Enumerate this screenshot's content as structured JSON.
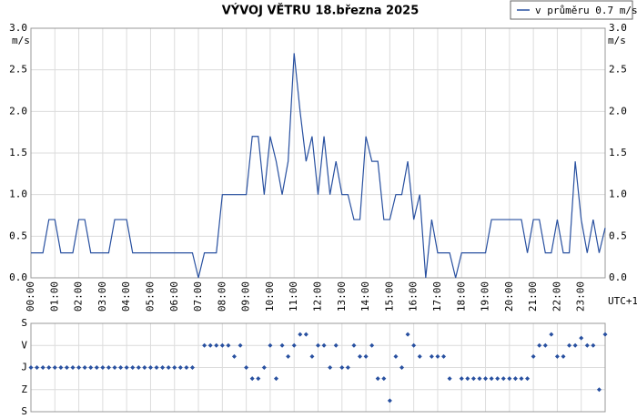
{
  "chart_data": [
    {
      "type": "line",
      "title": "VÝVOJ VĚTRU  18.března 2025",
      "legend": "v průměru 0.7 m/s",
      "y_unit": "m/s",
      "x_unit": "UTC+1",
      "grid": true,
      "legend_position": "top-right",
      "xlim": [
        0,
        1440
      ],
      "xticks": [
        {
          "value": 0,
          "label": "00:00"
        },
        {
          "value": 60,
          "label": "01:00"
        },
        {
          "value": 120,
          "label": "02:00"
        },
        {
          "value": 180,
          "label": "03:00"
        },
        {
          "value": 240,
          "label": "04:00"
        },
        {
          "value": 300,
          "label": "05:00"
        },
        {
          "value": 360,
          "label": "06:00"
        },
        {
          "value": 420,
          "label": "07:00"
        },
        {
          "value": 480,
          "label": "08:00"
        },
        {
          "value": 540,
          "label": "09:00"
        },
        {
          "value": 600,
          "label": "10:00"
        },
        {
          "value": 660,
          "label": "11:00"
        },
        {
          "value": 720,
          "label": "12:00"
        },
        {
          "value": 780,
          "label": "13:00"
        },
        {
          "value": 840,
          "label": "14:00"
        },
        {
          "value": 900,
          "label": "15:00"
        },
        {
          "value": 960,
          "label": "16:00"
        },
        {
          "value": 1020,
          "label": "17:00"
        },
        {
          "value": 1080,
          "label": "18:00"
        },
        {
          "value": 1140,
          "label": "19:00"
        },
        {
          "value": 1200,
          "label": "20:00"
        },
        {
          "value": 1260,
          "label": "21:00"
        },
        {
          "value": 1320,
          "label": "22:00"
        },
        {
          "value": 1380,
          "label": "23:00"
        }
      ],
      "ylim": [
        0,
        3
      ],
      "yticks": [
        {
          "value": 0,
          "label": "0.0"
        },
        {
          "value": 0.5,
          "label": "0.5"
        },
        {
          "value": 1,
          "label": "1.0"
        },
        {
          "value": 1.5,
          "label": "1.5"
        },
        {
          "value": 2,
          "label": "2.0"
        },
        {
          "value": 2.5,
          "label": "2.5"
        },
        {
          "value": 3,
          "label": "3.0"
        }
      ],
      "x": [
        0,
        15,
        30,
        45,
        60,
        75,
        90,
        105,
        120,
        135,
        150,
        165,
        180,
        195,
        210,
        225,
        240,
        255,
        270,
        285,
        300,
        315,
        330,
        345,
        360,
        375,
        390,
        405,
        420,
        435,
        450,
        465,
        480,
        495,
        510,
        525,
        540,
        555,
        570,
        585,
        600,
        615,
        630,
        645,
        660,
        675,
        690,
        705,
        720,
        735,
        750,
        765,
        780,
        795,
        810,
        825,
        840,
        855,
        870,
        885,
        900,
        915,
        930,
        945,
        960,
        975,
        990,
        1005,
        1020,
        1035,
        1050,
        1065,
        1080,
        1095,
        1110,
        1125,
        1140,
        1155,
        1170,
        1185,
        1200,
        1215,
        1230,
        1245,
        1260,
        1275,
        1290,
        1305,
        1320,
        1335,
        1350,
        1365,
        1380,
        1395,
        1410,
        1425,
        1440
      ],
      "series": [
        {
          "name": "v průměru 0.7 m/s",
          "color": "#2850a0",
          "values": [
            0.3,
            0.3,
            0.3,
            0.7,
            0.7,
            0.3,
            0.3,
            0.3,
            0.7,
            0.7,
            0.3,
            0.3,
            0.3,
            0.3,
            0.7,
            0.7,
            0.7,
            0.3,
            0.3,
            0.3,
            0.3,
            0.3,
            0.3,
            0.3,
            0.3,
            0.3,
            0.3,
            0.3,
            0.0,
            0.3,
            0.3,
            0.3,
            1.0,
            1.0,
            1.0,
            1.0,
            1.0,
            1.7,
            1.7,
            1.0,
            1.7,
            1.4,
            1.0,
            1.4,
            2.7,
            2.0,
            1.4,
            1.7,
            1.0,
            1.7,
            1.0,
            1.4,
            1.0,
            1.0,
            0.7,
            0.7,
            1.7,
            1.4,
            1.4,
            0.7,
            0.7,
            1.0,
            1.0,
            1.4,
            0.7,
            1.0,
            0.0,
            0.7,
            0.3,
            0.3,
            0.3,
            0.0,
            0.3,
            0.3,
            0.3,
            0.3,
            0.3,
            0.7,
            0.7,
            0.7,
            0.7,
            0.7,
            0.7,
            0.3,
            0.7,
            0.7,
            0.3,
            0.3,
            0.7,
            0.3,
            0.3,
            1.4,
            0.7,
            0.3,
            0.7,
            0.3,
            0.6
          ]
        }
      ]
    },
    {
      "type": "scatter",
      "grid": true,
      "xlim": [
        0,
        1440
      ],
      "ylim": [
        360,
        0
      ],
      "yticks": [
        {
          "value": 0,
          "label": "S"
        },
        {
          "value": 90,
          "label": "V"
        },
        {
          "value": 180,
          "label": "J"
        },
        {
          "value": 270,
          "label": "Z"
        },
        {
          "value": 360,
          "label": "S"
        }
      ],
      "x": [
        0,
        15,
        30,
        45,
        60,
        75,
        90,
        105,
        120,
        135,
        150,
        165,
        180,
        195,
        210,
        225,
        240,
        255,
        270,
        285,
        300,
        315,
        330,
        345,
        360,
        375,
        390,
        405,
        420,
        435,
        450,
        465,
        480,
        495,
        510,
        525,
        540,
        555,
        570,
        585,
        600,
        615,
        630,
        645,
        660,
        675,
        690,
        705,
        720,
        735,
        750,
        765,
        780,
        795,
        810,
        825,
        840,
        855,
        870,
        885,
        900,
        915,
        930,
        945,
        960,
        975,
        990,
        1005,
        1020,
        1035,
        1050,
        1065,
        1080,
        1095,
        1110,
        1125,
        1140,
        1155,
        1170,
        1185,
        1200,
        1215,
        1230,
        1245,
        1260,
        1275,
        1290,
        1305,
        1320,
        1335,
        1350,
        1365,
        1380,
        1395,
        1410,
        1425,
        1440
      ],
      "series": [
        {
          "color": "#2850a0",
          "values": [
            180,
            180,
            180,
            180,
            180,
            180,
            180,
            180,
            180,
            180,
            180,
            180,
            180,
            180,
            180,
            180,
            180,
            180,
            180,
            180,
            180,
            180,
            180,
            180,
            180,
            180,
            180,
            180,
            null,
            90,
            90,
            90,
            90,
            90,
            135,
            90,
            180,
            225,
            225,
            180,
            90,
            225,
            90,
            135,
            90,
            45,
            45,
            135,
            90,
            90,
            180,
            90,
            180,
            180,
            90,
            135,
            135,
            90,
            225,
            225,
            315,
            135,
            180,
            45,
            90,
            135,
            null,
            135,
            135,
            135,
            225,
            null,
            225,
            225,
            225,
            225,
            225,
            225,
            225,
            225,
            225,
            225,
            225,
            225,
            135,
            90,
            90,
            45,
            135,
            135,
            90,
            90,
            60,
            90,
            90,
            270,
            45
          ]
        }
      ]
    }
  ]
}
